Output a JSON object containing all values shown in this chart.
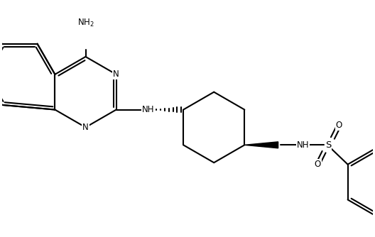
{
  "background_color": "#ffffff",
  "line_color": "#000000",
  "line_width": 1.5,
  "font_size": 8.5,
  "figsize": [
    5.28,
    3.34
  ],
  "dpi": 100,
  "xlim": [
    0,
    10.5
  ],
  "ylim": [
    -3.5,
    3.0
  ]
}
